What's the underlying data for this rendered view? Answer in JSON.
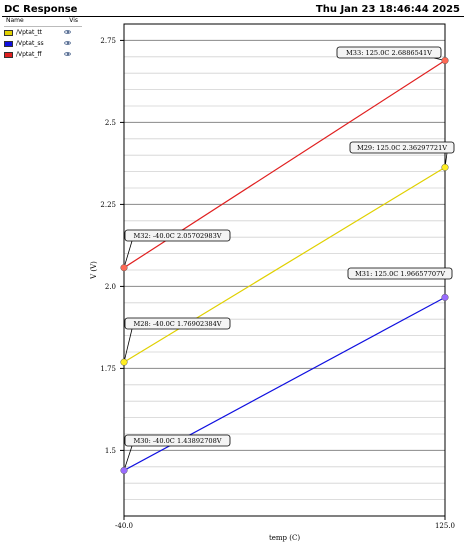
{
  "header": {
    "title": "DC Response",
    "datetime": "Thu Jan 23 18:46:44 2025"
  },
  "legend": {
    "col_name": "Name",
    "col_vis": "Vis",
    "items": [
      {
        "label": "/Vptat_tt",
        "color": "#e0d000"
      },
      {
        "label": "/Vptat_ss",
        "color": "#1010e0"
      },
      {
        "label": "/Vptat_ff",
        "color": "#e02020"
      }
    ]
  },
  "chart_data": {
    "type": "line",
    "xlabel": "temp (C)",
    "ylabel": "V (V)",
    "xlim": [
      -40.0,
      125.0
    ],
    "ylim": [
      1.3,
      2.8
    ],
    "xticks": [
      -40.0,
      125.0
    ],
    "xtick_labels": [
      "-40.0",
      "125.0"
    ],
    "yticks": [
      1.5,
      1.75,
      2.0,
      2.25,
      2.5,
      2.75
    ],
    "ytick_labels": [
      "1.5",
      "1.75",
      "2.0",
      "2.25",
      "2.5",
      "2.75"
    ],
    "minor_grid_step": 0.05,
    "grid": true,
    "series": [
      {
        "name": "/Vptat_tt",
        "color": "#e0d000",
        "x": [
          -40.0,
          125.0
        ],
        "y": [
          1.76902384,
          2.36297721
        ]
      },
      {
        "name": "/Vptat_ss",
        "color": "#1010e0",
        "x": [
          -40.0,
          125.0
        ],
        "y": [
          1.43892708,
          1.96657707
        ]
      },
      {
        "name": "/Vptat_ff",
        "color": "#e02020",
        "x": [
          -40.0,
          125.0
        ],
        "y": [
          2.05702983,
          2.6886541
        ]
      }
    ],
    "markers": [
      {
        "text": "M32: -40.0C 2.05702983V",
        "x": -40.0,
        "y": 2.05702983,
        "color": "#ff6a55"
      },
      {
        "text": "M28: -40.0C 1.76902384V",
        "x": -40.0,
        "y": 1.76902384,
        "color": "#ffee22"
      },
      {
        "text": "M30: -40.0C 1.43892708V",
        "x": -40.0,
        "y": 1.43892708,
        "color": "#9a6cff"
      },
      {
        "text": "M33: 125.0C 2.6886541V",
        "x": 125.0,
        "y": 2.6886541,
        "color": "#ff6a55"
      },
      {
        "text": "M29: 125.0C 2.36297721V",
        "x": 125.0,
        "y": 2.36297721,
        "color": "#ffee22"
      },
      {
        "text": "M31: 125.0C 1.96657707V",
        "x": 125.0,
        "y": 1.96657707,
        "color": "#9a6cff"
      }
    ]
  }
}
